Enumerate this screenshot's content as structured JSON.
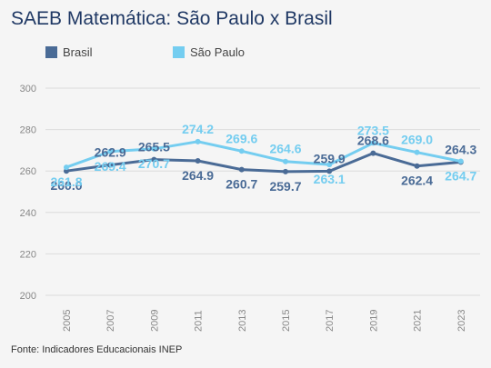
{
  "title": "SAEB Matemática: São Paulo x Brasil",
  "source": "Fonte: Indicadores Educacionais INEP",
  "colors": {
    "brasil": "#4a6b96",
    "sao_paulo": "#74cdf0",
    "grid": "#dcdcdc",
    "tick": "#888888"
  },
  "chart_data": {
    "type": "line",
    "x": [
      "2005",
      "2007",
      "2009",
      "2011",
      "2013",
      "2015",
      "2017",
      "2019",
      "2021",
      "2023"
    ],
    "series": [
      {
        "name": "Brasil",
        "values": [
          260.0,
          262.9,
          265.5,
          264.9,
          260.7,
          259.7,
          259.9,
          268.6,
          262.4,
          264.3
        ],
        "labels": [
          "260.0",
          "262.9",
          "265.5",
          "264.9",
          "260.7",
          "259.7",
          "259.9",
          "268.6",
          "262.4",
          "264.3"
        ]
      },
      {
        "name": "São Paulo",
        "values": [
          261.8,
          269.4,
          270.7,
          274.2,
          269.6,
          264.6,
          263.1,
          273.5,
          269.0,
          264.7
        ],
        "labels": [
          "261.8",
          "269.4",
          "270.7",
          "274.2",
          "269.6",
          "264.6",
          "263.1",
          "273.5",
          "269.0",
          "264.7"
        ]
      }
    ],
    "yticks": [
      200,
      220,
      240,
      260,
      280,
      300
    ],
    "ylim": [
      200,
      300
    ],
    "grid": true,
    "legend": "top-left",
    "xlabel": "",
    "ylabel": ""
  }
}
